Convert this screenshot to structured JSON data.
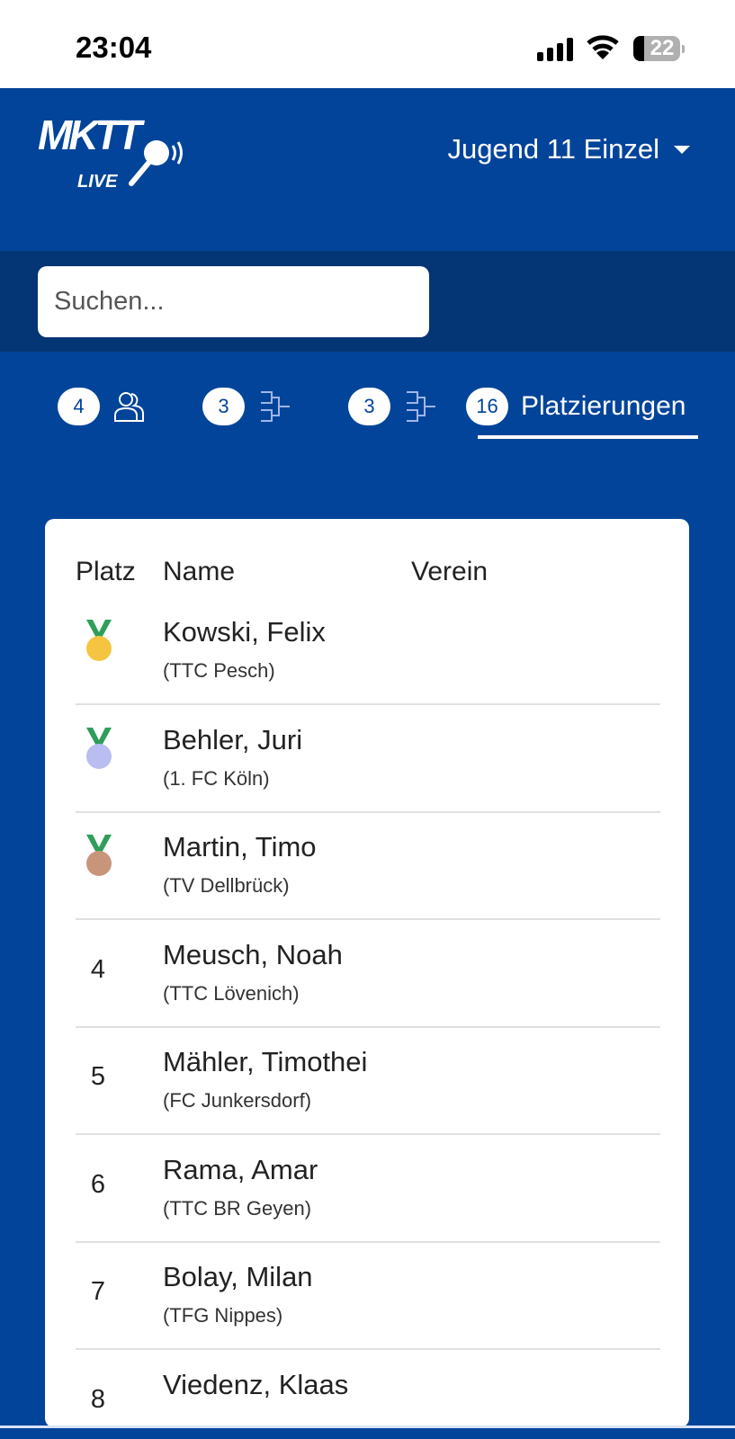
{
  "status_bar": {
    "time": "23:04",
    "battery": "22"
  },
  "header": {
    "logo_text": "MKTT LIVE",
    "category": "Jugend 11 Einzel"
  },
  "search": {
    "placeholder": "Suchen..."
  },
  "tabs": [
    {
      "count": "4",
      "icon": "users-icon"
    },
    {
      "count": "3",
      "icon": "bracket-icon"
    },
    {
      "count": "3",
      "icon": "bracket-icon"
    },
    {
      "count": "16",
      "label": "Platzierungen",
      "active": true
    }
  ],
  "table": {
    "headers": [
      "Platz",
      "Name",
      "Verein"
    ],
    "rows": [
      {
        "place": "1",
        "medal": "gold",
        "name": "Kowski, Felix",
        "club": "(TTC Pesch)"
      },
      {
        "place": "2",
        "medal": "silver",
        "name": "Behler, Juri",
        "club": "(1. FC Köln)"
      },
      {
        "place": "3",
        "medal": "bronze",
        "name": "Martin, Timo",
        "club": "(TV Dellbrück)"
      },
      {
        "place": "4",
        "name": "Meusch, Noah",
        "club": "(TTC Lövenich)"
      },
      {
        "place": "5",
        "name": "Mähler, Timothei",
        "club": "(FC Junkersdorf)"
      },
      {
        "place": "6",
        "name": "Rama, Amar",
        "club": "(TTC BR Geyen)"
      },
      {
        "place": "7",
        "name": "Bolay, Milan",
        "club": "(TFG Nippes)"
      },
      {
        "place": "8",
        "name": "Viedenz, Klaas",
        "club": ""
      }
    ]
  },
  "colors": {
    "primary": "#02449a",
    "band": "#043574",
    "gold": "#f5c542",
    "silver": "#b9bdf0",
    "bronze": "#c9957a",
    "ribbon": "#2e9e5a"
  }
}
